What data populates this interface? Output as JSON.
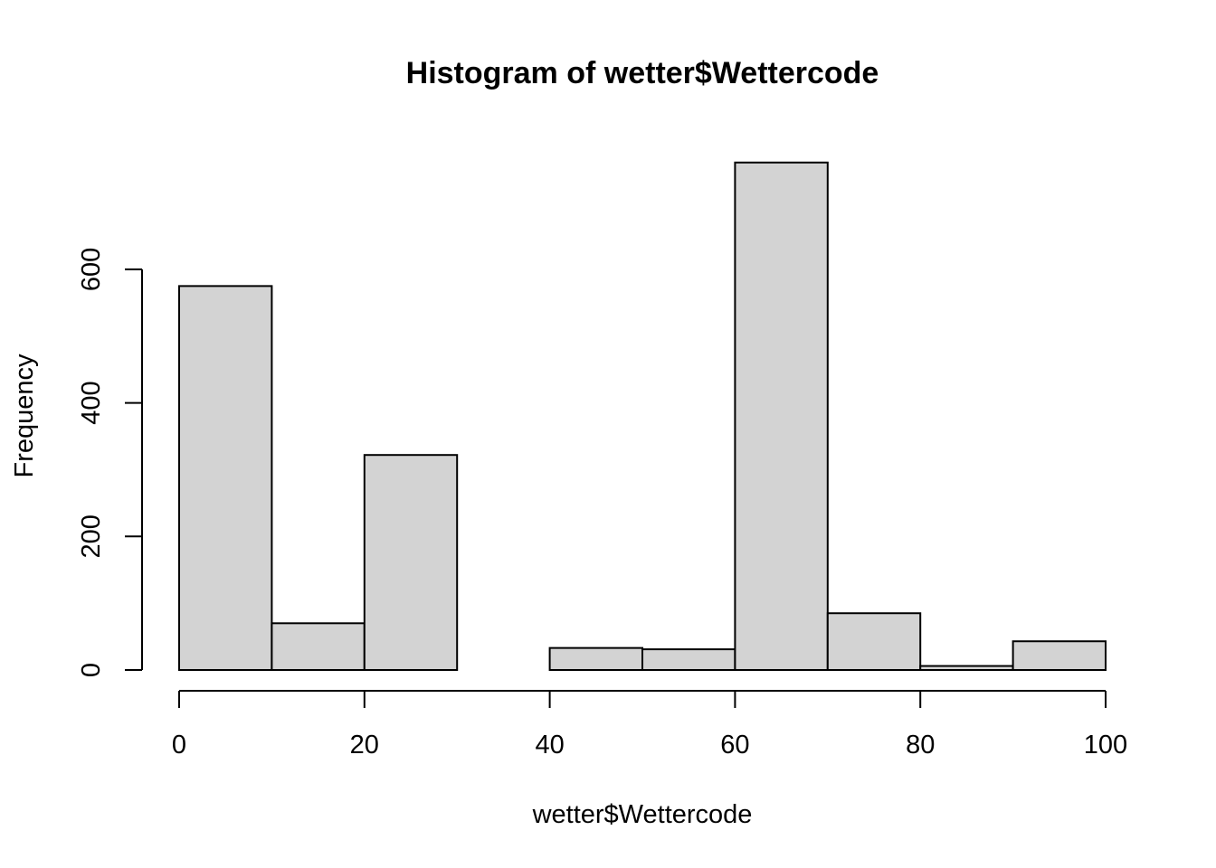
{
  "chart_data": {
    "type": "bar",
    "title": "Histogram of wetter$Wettercode",
    "xlabel": "wetter$Wettercode",
    "ylabel": "Frequency",
    "bins": [
      {
        "start": 0,
        "end": 10,
        "count": 575
      },
      {
        "start": 10,
        "end": 20,
        "count": 70
      },
      {
        "start": 20,
        "end": 30,
        "count": 322
      },
      {
        "start": 30,
        "end": 40,
        "count": 0
      },
      {
        "start": 40,
        "end": 50,
        "count": 33
      },
      {
        "start": 50,
        "end": 60,
        "count": 31
      },
      {
        "start": 60,
        "end": 70,
        "count": 760
      },
      {
        "start": 70,
        "end": 80,
        "count": 85
      },
      {
        "start": 80,
        "end": 90,
        "count": 6
      },
      {
        "start": 90,
        "end": 100,
        "count": 43
      }
    ],
    "xlim": [
      0,
      100
    ],
    "ylim": [
      0,
      760
    ],
    "x_ticks": [
      0,
      20,
      40,
      60,
      80,
      100
    ],
    "y_ticks": [
      0,
      200,
      400,
      600
    ],
    "bar_fill": "#d3d3d3",
    "grid": false,
    "legend": "none"
  }
}
